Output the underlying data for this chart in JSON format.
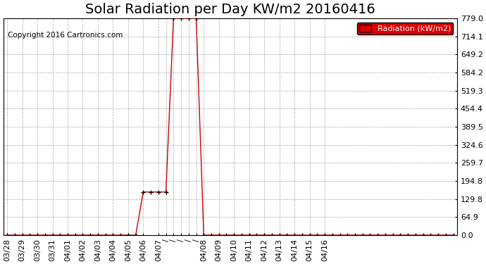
{
  "title": "Solar Radiation per Day KW/m2 20160416",
  "copyright_text": "Copyright 2016 Cartronics.com",
  "legend_label": "Radiation (kW/m2)",
  "legend_bg": "#dd0000",
  "legend_text_color": "#ffffff",
  "line_color": "#cc0000",
  "marker_color": "#000000",
  "background_color": "#ffffff",
  "grid_color": "#aaaaaa",
  "ylim": [
    0.0,
    779.0
  ],
  "ytick_values": [
    0.0,
    64.9,
    129.8,
    194.8,
    259.7,
    324.6,
    389.5,
    454.4,
    519.3,
    584.2,
    649.2,
    714.1,
    779.0
  ],
  "ytick_labels": [
    "0.0",
    "64.9",
    "129.8",
    "194.8",
    "259.7",
    "324.6",
    "389.5",
    "454.4",
    "519.3",
    "584.2",
    "649.2",
    "714.1",
    "779.0"
  ],
  "x_values": [
    0,
    1,
    2,
    3,
    4,
    5,
    6,
    7,
    8,
    9,
    10,
    11,
    12,
    13,
    14,
    15,
    16,
    17,
    18,
    19,
    20,
    21,
    22,
    23,
    24,
    25,
    26,
    27,
    28,
    29,
    30,
    31,
    32,
    33,
    34,
    35,
    36,
    37,
    38,
    39,
    40,
    41,
    42,
    43,
    44,
    45,
    46,
    47,
    48,
    49,
    50,
    51,
    52,
    53,
    54,
    55,
    56,
    57,
    58,
    59
  ],
  "y_values": [
    0,
    0,
    0,
    0,
    0,
    0,
    0,
    0,
    0,
    0,
    0,
    0,
    0,
    0,
    0,
    0,
    0,
    0,
    155,
    155,
    155,
    155,
    779,
    779,
    779,
    779,
    0,
    0,
    0,
    0,
    0,
    0,
    0,
    0,
    0,
    0,
    0,
    0,
    0,
    0,
    0,
    0,
    0,
    0,
    0,
    0,
    0,
    0,
    0,
    0,
    0,
    0,
    0,
    0,
    0,
    0,
    0,
    0,
    0,
    0
  ],
  "named_tick_positions": [
    0,
    2,
    4,
    6,
    8,
    10,
    12,
    14,
    16,
    18,
    20,
    26,
    28,
    30,
    32,
    34,
    36,
    38,
    40,
    42
  ],
  "named_tick_labels": [
    "03/28",
    "03/29",
    "03/30",
    "03/31",
    "04/01",
    "04/02",
    "04/03",
    "04/04",
    "04/05",
    "04/06",
    "04/07",
    "04/08",
    "04/09",
    "04/10",
    "04/11",
    "04/12",
    "04/13",
    "04/14",
    "04/15",
    "04/16"
  ],
  "dash_tick_positions": [
    21,
    22,
    23,
    24,
    25
  ],
  "title_fontsize": 14,
  "axis_tick_fontsize": 8,
  "copyright_fontsize": 7.5
}
